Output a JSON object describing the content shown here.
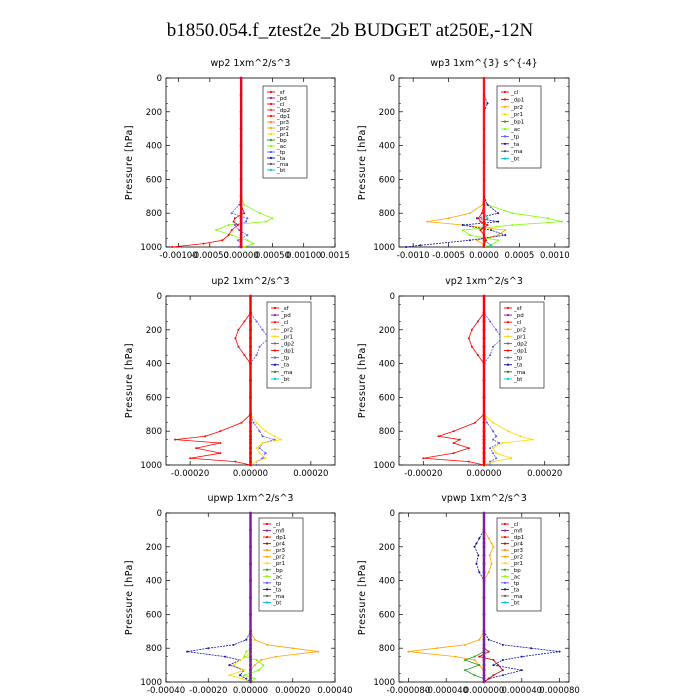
{
  "figure": {
    "title": "b1850.054.f_ztest2e_2b  BUDGET at250E,-12N"
  },
  "style": {
    "colors": {
      "sf": "#ff0000",
      "pd": "#7b1fa2",
      "cl": "#ff0000",
      "dp2": "#e53935",
      "dp1": "#ff0000",
      "pr3": "#ff8c00",
      "pr2": "#ffa500",
      "pr1": "#ffd700",
      "bp": "#1e9e1e",
      "bp1": "#1e9e1e",
      "ac": "#7cfc00",
      "tp": "#5a5aff",
      "ta": "#1010a0",
      "ma": "#555555",
      "bt": "#00bcd4",
      "mfl": "#7b1fa2",
      "dp4": "#9c27b0",
      "pr4": "#cc0000"
    }
  },
  "chart_data": [
    {
      "type": "line",
      "title": "wp2   1xm^2/s^3",
      "ylabel": "Pressure [hPa]",
      "ylim": [
        1000,
        0
      ],
      "yticks": [
        0,
        200,
        400,
        600,
        800,
        1000
      ],
      "xlim": [
        -0.0012,
        0.0015
      ],
      "xtick_labels": [
        "-0.00100",
        "-0.00050",
        "0.00000",
        "0.00050",
        "0.00100",
        "0.0015"
      ],
      "xtick_values": [
        -0.001,
        -0.0005,
        0.0,
        0.0005,
        0.001,
        0.0015
      ],
      "legend": [
        "_sf",
        "_pd",
        "_cl",
        "_dp2",
        "_dp1",
        "_pr3",
        "_pr2",
        "_pr1",
        "_bp",
        "_ac",
        "_tp",
        "_ta",
        "_ma",
        "_bt"
      ],
      "legend_colors": [
        "sf",
        "pd",
        "cl",
        "dp2",
        "dp1",
        "pr3",
        "pr2",
        "pr1",
        "bp",
        "ac",
        "tp",
        "ta",
        "ma",
        "bt"
      ],
      "pressure": [
        0,
        100,
        200,
        300,
        400,
        500,
        600,
        700,
        750,
        800,
        830,
        850,
        870,
        900,
        930,
        960,
        980,
        1000
      ],
      "series": [
        {
          "name": "_ac",
          "values": [
            0,
            0,
            0,
            0,
            0,
            0,
            0,
            0,
            5e-05,
            0.0003,
            0.0005,
            0.0004,
            -0.0002,
            -0.0004,
            -0.00015,
            0.0001,
            0.0002,
            5e-05
          ]
        },
        {
          "name": "_tp",
          "values": [
            0,
            0,
            0,
            0,
            0,
            0,
            0,
            0,
            -3e-05,
            -0.00015,
            0.0001,
            8e-05,
            -0.0001,
            -3e-05,
            0.0001,
            -5e-05,
            0,
            -4e-05
          ]
        },
        {
          "name": "_cl",
          "values": [
            0,
            0,
            0,
            0,
            0,
            0,
            0,
            0,
            0,
            5e-05,
            -0.0001,
            -0.00012,
            -5e-05,
            -0.00015,
            -0.0002,
            -0.0003,
            -0.0006,
            -0.0011
          ]
        },
        {
          "name": "_pd",
          "values": [
            0,
            0,
            0,
            0,
            0,
            0,
            0,
            0,
            0,
            0,
            0,
            0,
            0,
            0,
            0,
            0,
            0,
            0
          ]
        }
      ]
    },
    {
      "type": "line",
      "title": "wp3   1xm^{3} s^{-4}",
      "ylabel": "Pressure [hPa]",
      "ylim": [
        1000,
        0
      ],
      "yticks": [
        0,
        200,
        400,
        600,
        800,
        1000
      ],
      "xlim": [
        -0.0012,
        0.0012
      ],
      "xtick_labels": [
        "-0.0010",
        "-0.0005",
        "0.0000",
        "0.0005",
        "0.0010"
      ],
      "xtick_values": [
        -0.001,
        -0.0005,
        0.0,
        0.0005,
        0.001
      ],
      "legend": [
        "_cl",
        "_dp1",
        "_pr2",
        "_pr1",
        "_bp1",
        "_ac",
        "_tp",
        "_ta",
        "_ma",
        "_bt"
      ],
      "legend_colors": [
        "cl",
        "dp1",
        "pr2",
        "pr1",
        "bp1",
        "ac",
        "tp",
        "ta",
        "ma",
        "bt"
      ],
      "pressure": [
        0,
        100,
        150,
        200,
        300,
        400,
        500,
        600,
        700,
        750,
        800,
        830,
        850,
        870,
        900,
        930,
        960,
        990,
        1000
      ],
      "series": [
        {
          "name": "_ac",
          "values": [
            0,
            0,
            0,
            0,
            0,
            0,
            0,
            0,
            0,
            5e-05,
            0.0004,
            0.0009,
            0.0011,
            0.0004,
            -0.0003,
            -0.0002,
            0.0002,
            0.0001,
            0
          ]
        },
        {
          "name": "_pr2",
          "values": [
            0,
            0,
            0,
            0,
            0,
            0,
            0,
            0,
            0,
            -2e-05,
            -0.0002,
            -0.0005,
            -0.0008,
            -0.0003,
            0.0003,
            0.0002,
            -0.0001,
            0,
            0
          ]
        },
        {
          "name": "_ta",
          "values": [
            0,
            0,
            5e-05,
            0,
            0,
            0,
            0,
            0,
            0,
            5e-05,
            0.0002,
            -0.0001,
            0.0002,
            -0.0003,
            0.0001,
            0.0003,
            -0.0002,
            -0.0009,
            -0.0011
          ]
        },
        {
          "name": "_bt",
          "values": [
            0,
            0,
            0,
            0,
            0,
            0,
            0,
            0,
            0,
            0,
            0,
            5e-05,
            0,
            0,
            -5e-05,
            0,
            0,
            0.0001,
            0.0001
          ]
        },
        {
          "name": "_cl",
          "values": [
            0,
            0,
            0,
            0,
            0,
            0,
            0,
            0,
            0,
            0,
            -3e-05,
            -8e-05,
            -5e-05,
            5e-05,
            -5e-05,
            0,
            3e-05,
            0,
            0
          ]
        }
      ]
    },
    {
      "type": "line",
      "title": "up2   1xm^2/s^3",
      "ylabel": "Pressure [hPa]",
      "ylim": [
        1000,
        0
      ],
      "yticks": [
        0,
        200,
        400,
        600,
        800,
        1000
      ],
      "xlim": [
        -0.00028,
        0.00028
      ],
      "xtick_labels": [
        "-0.00020",
        "0.00000",
        "0.00020"
      ],
      "xtick_values": [
        -0.0002,
        0.0,
        0.0002
      ],
      "legend": [
        "_sf",
        "_pd",
        "_cl",
        "_pr2",
        "_pr1",
        "_dp2",
        "_dp1",
        "_tp",
        "_ta",
        "_ma",
        "_bt"
      ],
      "legend_colors": [
        "sf",
        "pd",
        "cl",
        "pr2",
        "pr1",
        "dp2",
        "dp1",
        "tp",
        "ta",
        "ma",
        "bt"
      ],
      "pressure": [
        0,
        100,
        150,
        200,
        250,
        300,
        350,
        400,
        500,
        600,
        700,
        750,
        800,
        830,
        850,
        870,
        900,
        930,
        960,
        980,
        1000
      ],
      "series": [
        {
          "name": "_dp1",
          "values": [
            0,
            0,
            -2e-05,
            -4e-05,
            -5e-05,
            -4e-05,
            -2e-05,
            0,
            0,
            0,
            0,
            -3e-05,
            -0.0001,
            -0.00015,
            -0.00025,
            -0.0001,
            -0.00018,
            -0.0001,
            -0.0002,
            -5e-05,
            0
          ]
        },
        {
          "name": "_tp",
          "values": [
            0,
            0,
            2e-05,
            4e-05,
            6e-05,
            3e-05,
            2e-05,
            0,
            0,
            0,
            0,
            1e-05,
            3e-05,
            4e-05,
            8e-05,
            4e-05,
            3e-05,
            5e-05,
            4e-05,
            2e-05,
            2e-05
          ]
        },
        {
          "name": "_pr1",
          "values": [
            0,
            0,
            0,
            0,
            0,
            0,
            0,
            0,
            0,
            0,
            0,
            2e-05,
            5e-05,
            8e-05,
            0.0001,
            4e-05,
            2e-05,
            3e-05,
            5e-05,
            2e-05,
            0
          ]
        },
        {
          "name": "_sf",
          "values": [
            0,
            0,
            0,
            0,
            0,
            0,
            0,
            0,
            0,
            0,
            0,
            0,
            0,
            0,
            0,
            0,
            0,
            0,
            0,
            0,
            0
          ]
        }
      ]
    },
    {
      "type": "line",
      "title": "vp2   1xm^2/s^3",
      "ylabel": "Pressure [hPa]",
      "ylim": [
        1000,
        0
      ],
      "yticks": [
        0,
        200,
        400,
        600,
        800,
        1000
      ],
      "xlim": [
        -0.00028,
        0.00028
      ],
      "xtick_labels": [
        "-0.00020",
        "0.00000",
        "0.00020"
      ],
      "xtick_values": [
        -0.0002,
        0.0,
        0.0002
      ],
      "legend": [
        "_sf",
        "_pd",
        "_cl",
        "_pr2",
        "_pr1",
        "_dp2",
        "_dp1",
        "_tp",
        "_ta",
        "_ma",
        "_bt"
      ],
      "legend_colors": [
        "sf",
        "pd",
        "cl",
        "pr2",
        "pr1",
        "dp2",
        "dp1",
        "tp",
        "ta",
        "ma",
        "bt"
      ],
      "pressure": [
        0,
        100,
        150,
        200,
        250,
        300,
        350,
        400,
        500,
        600,
        700,
        750,
        800,
        830,
        850,
        870,
        900,
        930,
        960,
        980,
        1000
      ],
      "series": [
        {
          "name": "_dp1",
          "values": [
            0,
            0,
            -2e-05,
            -4e-05,
            -5e-05,
            -4e-05,
            -2e-05,
            0,
            0,
            0,
            0,
            -3e-05,
            -0.0001,
            -0.00015,
            -8e-05,
            -0.0001,
            -5e-05,
            -0.0001,
            -0.0002,
            -5e-05,
            0
          ]
        },
        {
          "name": "_tp",
          "values": [
            0,
            0,
            2e-05,
            4e-05,
            6e-05,
            3e-05,
            2e-05,
            0,
            0,
            0,
            0,
            1e-05,
            3e-05,
            4e-05,
            3e-05,
            5e-05,
            2e-05,
            3e-05,
            4e-05,
            2e-05,
            2e-05
          ]
        },
        {
          "name": "_pr1",
          "values": [
            0,
            0,
            0,
            0,
            0,
            0,
            0,
            0,
            0,
            0,
            0,
            3e-05,
            8e-05,
            0.00012,
            0.00016,
            6e-05,
            3e-05,
            4e-05,
            9e-05,
            3e-05,
            0
          ]
        },
        {
          "name": "_sf",
          "values": [
            0,
            0,
            0,
            0,
            0,
            0,
            0,
            0,
            0,
            0,
            0,
            0,
            0,
            0,
            0,
            0,
            0,
            0,
            0,
            0,
            0
          ]
        }
      ]
    },
    {
      "type": "line",
      "title": "upwp   1xm^2/s^3",
      "ylabel": "Pressure [hPa]",
      "ylim": [
        1000,
        0
      ],
      "yticks": [
        0,
        200,
        400,
        600,
        800,
        1000
      ],
      "xlim": [
        -0.0004,
        0.0004
      ],
      "xtick_labels": [
        "-0.00040",
        "-0.00020",
        "0.00000",
        "0.00020",
        "0.00040"
      ],
      "xtick_values": [
        -0.0004,
        -0.0002,
        0.0,
        0.0002,
        0.0004
      ],
      "legend": [
        "_cl",
        "_mfl",
        "_dp1",
        "_pr4",
        "_pr3",
        "_pr2",
        "_pr1",
        "_bp",
        "_ac",
        "_tp",
        "_ta",
        "_ma",
        "_bt"
      ],
      "legend_colors": [
        "cl",
        "mfl",
        "dp1",
        "pr4",
        "pr3",
        "pr2",
        "pr1",
        "bp",
        "ac",
        "tp",
        "ta",
        "ma",
        "bt"
      ],
      "pressure": [
        0,
        100,
        200,
        300,
        400,
        500,
        600,
        700,
        750,
        780,
        800,
        820,
        850,
        870,
        900,
        930,
        960,
        980,
        1000
      ],
      "series": [
        {
          "name": "_ta",
          "values": [
            0,
            0,
            0,
            0,
            0,
            0,
            0,
            0,
            -2e-05,
            -8e-05,
            -0.0002,
            -0.0003,
            -0.00012,
            -5e-05,
            -0.0001,
            -3e-05,
            -5e-05,
            -2e-05,
            0
          ]
        },
        {
          "name": "_pr2",
          "values": [
            0,
            0,
            0,
            0,
            0,
            0,
            0,
            0,
            2e-05,
            8e-05,
            0.0002,
            0.00032,
            0.00012,
            5e-05,
            2e-05,
            0,
            0,
            0,
            0
          ]
        },
        {
          "name": "_pr1",
          "values": [
            0,
            0,
            0,
            0,
            0,
            0,
            0,
            0,
            0,
            0,
            0,
            0,
            -2e-05,
            -5e-05,
            -8e-05,
            -3e-05,
            -0.0001,
            -4e-05,
            0
          ]
        },
        {
          "name": "_ac",
          "values": [
            0,
            0,
            0,
            0,
            0,
            0,
            0,
            0,
            0,
            0,
            0,
            -2e-05,
            -3e-05,
            3e-05,
            6e-05,
            4e-05,
            -3e-05,
            2e-05,
            0
          ]
        },
        {
          "name": "_mfl",
          "values": [
            0,
            0,
            0,
            0,
            0,
            0,
            0,
            0,
            0,
            0,
            0,
            0,
            0,
            0,
            0,
            0,
            0,
            0,
            0
          ]
        }
      ]
    },
    {
      "type": "line",
      "title": "vpwp   1xm^2/s^3",
      "ylabel": "Pressure [hPa]",
      "ylim": [
        1000,
        0
      ],
      "yticks": [
        0,
        200,
        400,
        600,
        800,
        1000
      ],
      "xlim": [
        -9e-05,
        9e-05
      ],
      "xtick_labels": [
        "-0.000080",
        "-0.000040",
        "0.000000",
        "0.000040",
        "0.000080"
      ],
      "xtick_values": [
        -8e-05,
        -4e-05,
        0.0,
        4e-05,
        8e-05
      ],
      "legend": [
        "_cl",
        "_mfl",
        "_dp1",
        "_pr4",
        "_pr3",
        "_pr2",
        "_pr1",
        "_bp",
        "_ac",
        "_tp",
        "_ta",
        "_ma",
        "_bt"
      ],
      "legend_colors": [
        "cl",
        "mfl",
        "dp1",
        "pr4",
        "pr3",
        "pr2",
        "pr1",
        "bp",
        "ac",
        "tp",
        "ta",
        "ma",
        "bt"
      ],
      "pressure": [
        0,
        100,
        150,
        180,
        200,
        250,
        300,
        350,
        400,
        500,
        600,
        700,
        750,
        780,
        800,
        820,
        850,
        870,
        900,
        930,
        960,
        980,
        1000
      ],
      "series": [
        {
          "name": "_pr2",
          "values": [
            0,
            0,
            5e-06,
            8e-06,
            1e-05,
            6e-06,
            8e-06,
            5e-06,
            0,
            0,
            0,
            0,
            -5e-06,
            -2e-05,
            -5e-05,
            -8e-05,
            -3e-05,
            -1e-05,
            -5e-06,
            0,
            0,
            0,
            0
          ]
        },
        {
          "name": "_ta",
          "values": [
            0,
            0,
            -5e-06,
            -8e-06,
            -1e-05,
            -6e-06,
            -8e-06,
            -5e-06,
            0,
            0,
            0,
            0,
            5e-06,
            2e-05,
            5e-05,
            8e-05,
            4e-05,
            2e-05,
            1e-05,
            4e-05,
            2e-05,
            5e-06,
            0
          ]
        },
        {
          "name": "_bp",
          "values": [
            0,
            0,
            0,
            0,
            0,
            0,
            0,
            0,
            0,
            0,
            0,
            0,
            0,
            0,
            0,
            0,
            -1e-05,
            -2e-05,
            -5e-06,
            -2e-05,
            -1e-05,
            0,
            0
          ]
        },
        {
          "name": "_pr4",
          "values": [
            0,
            0,
            0,
            0,
            0,
            0,
            0,
            0,
            0,
            0,
            0,
            0,
            0,
            0,
            0,
            5e-06,
            -5e-06,
            1e-05,
            1.5e-05,
            2e-05,
            1e-05,
            5e-06,
            0
          ]
        },
        {
          "name": "_mfl",
          "values": [
            0,
            0,
            0,
            0,
            0,
            0,
            0,
            0,
            0,
            0,
            0,
            0,
            0,
            0,
            0,
            0,
            0,
            0,
            0,
            0,
            0,
            0,
            0
          ]
        }
      ]
    }
  ]
}
